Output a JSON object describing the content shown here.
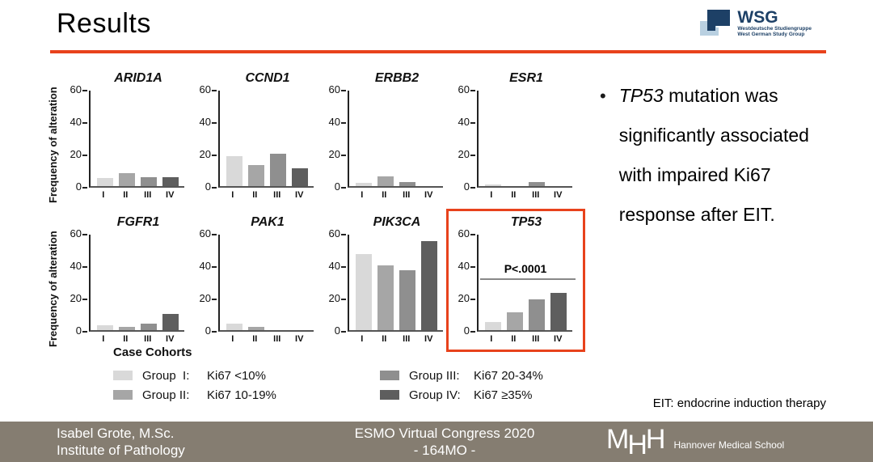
{
  "slide": {
    "title": "Results",
    "accent_color": "#e8421c"
  },
  "wsg_logo": {
    "name": "WSG",
    "line1": "Westdeutsche Studiengruppe",
    "line2": "West German Study Group",
    "dark_blue": "#1d4066",
    "light_blue": "#b9d0e1"
  },
  "bullet": {
    "italic": "TP53",
    "text": " mutation was significantly associated with impaired Ki67 response after EIT."
  },
  "footnote": "EIT: endocrine induction therapy",
  "legend": {
    "heading": "Case Cohorts",
    "items": [
      {
        "label": "Group  I:",
        "desc": "Ki67 <10%",
        "color": "#d9d9d9"
      },
      {
        "label": "Group II:",
        "desc": "Ki67 10-19%",
        "color": "#a6a6a6"
      },
      {
        "label": "Group III:",
        "desc": "Ki67 20-34%",
        "color": "#8f8f8f"
      },
      {
        "label": "Group IV:",
        "desc": "Ki67 ≥35%",
        "color": "#5e5e5e"
      }
    ]
  },
  "chart_data": {
    "type": "bar",
    "ylabel": "Frequency of alteration",
    "categories": [
      "I",
      "II",
      "III",
      "IV"
    ],
    "yticks": [
      0,
      20,
      40,
      60
    ],
    "ylim": [
      0,
      60
    ],
    "grid": false,
    "group_colors": [
      "#d9d9d9",
      "#a6a6a6",
      "#8f8f8f",
      "#5e5e5e"
    ],
    "charts": [
      {
        "title": "ARID1A",
        "values": [
          5,
          8,
          5.5,
          5.5
        ]
      },
      {
        "title": "CCND1",
        "values": [
          18.5,
          13,
          20,
          11
        ]
      },
      {
        "title": "ERBB2",
        "values": [
          2,
          6,
          2.5,
          0
        ]
      },
      {
        "title": "ESR1",
        "values": [
          1,
          0,
          2.5,
          0
        ]
      },
      {
        "title": "FGFR1",
        "values": [
          3,
          2,
          4,
          10
        ]
      },
      {
        "title": "PAK1",
        "values": [
          4,
          2,
          0,
          0
        ]
      },
      {
        "title": "PIK3CA",
        "values": [
          47,
          40,
          37,
          55
        ]
      },
      {
        "title": "TP53",
        "values": [
          5,
          11,
          19,
          23
        ],
        "annotation": "P<.0001",
        "annotation_y": 31,
        "highlighted": true
      }
    ]
  },
  "footer": {
    "author_line1": "Isabel Grote, M.Sc.",
    "author_line2": "Institute of Pathology",
    "congress_line1": "ESMO Virtual Congress 2020",
    "congress_line2": "- 164MO -",
    "mhh_m": "M",
    "mhh_h2": "H",
    "mhh_h3": "H",
    "mhh_label": "Hannover Medical School",
    "bg_color": "#857d71"
  }
}
